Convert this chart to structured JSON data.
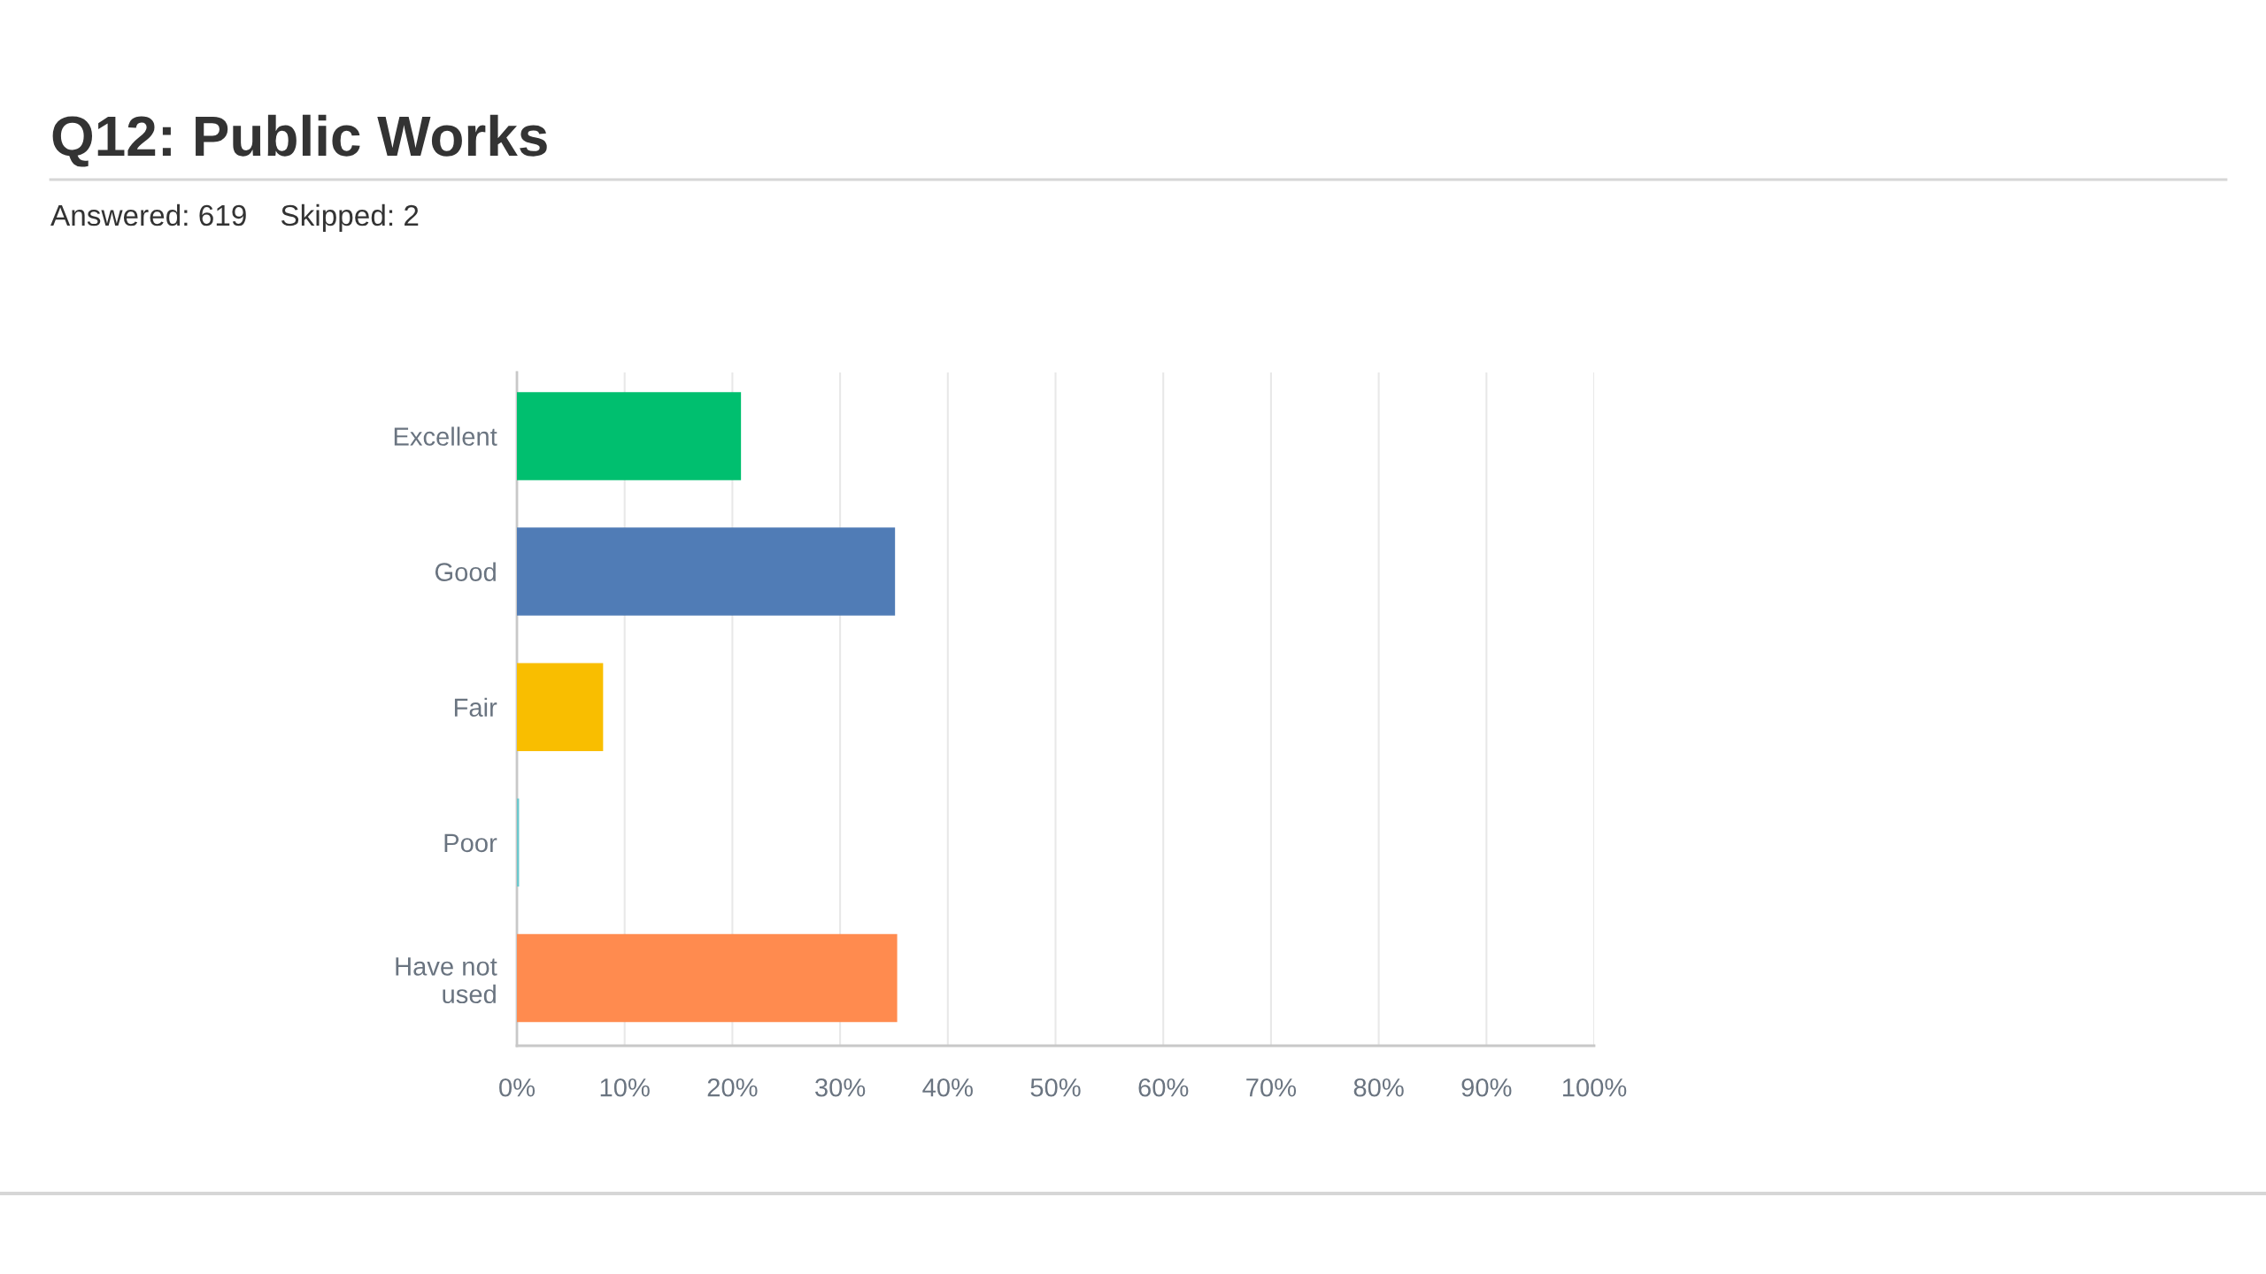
{
  "chart_data": {
    "type": "bar",
    "orientation": "horizontal",
    "title": "Q12: Public Works",
    "subtitle": "Answered: 619    Skipped: 2",
    "categories": [
      "Excellent",
      "Good",
      "Fair",
      "Poor",
      "Have not used"
    ],
    "values": [
      20.8,
      35.1,
      8.0,
      0.2,
      35.3
    ],
    "colors": [
      "#00bf6f",
      "#507cb6",
      "#f9be00",
      "#6bc8cd",
      "#ff8b4f"
    ],
    "xlim": [
      0,
      100
    ],
    "xticks": [
      {
        "value": 0,
        "label": "0%"
      },
      {
        "value": 10,
        "label": "10%"
      },
      {
        "value": 20,
        "label": "20%"
      },
      {
        "value": 30,
        "label": "30%"
      },
      {
        "value": 40,
        "label": "40%"
      },
      {
        "value": 50,
        "label": "50%"
      },
      {
        "value": 60,
        "label": "60%"
      },
      {
        "value": 70,
        "label": "70%"
      },
      {
        "value": 80,
        "label": "80%"
      },
      {
        "value": 90,
        "label": "90%"
      },
      {
        "value": 100,
        "label": "100%"
      }
    ],
    "grid": "x"
  }
}
